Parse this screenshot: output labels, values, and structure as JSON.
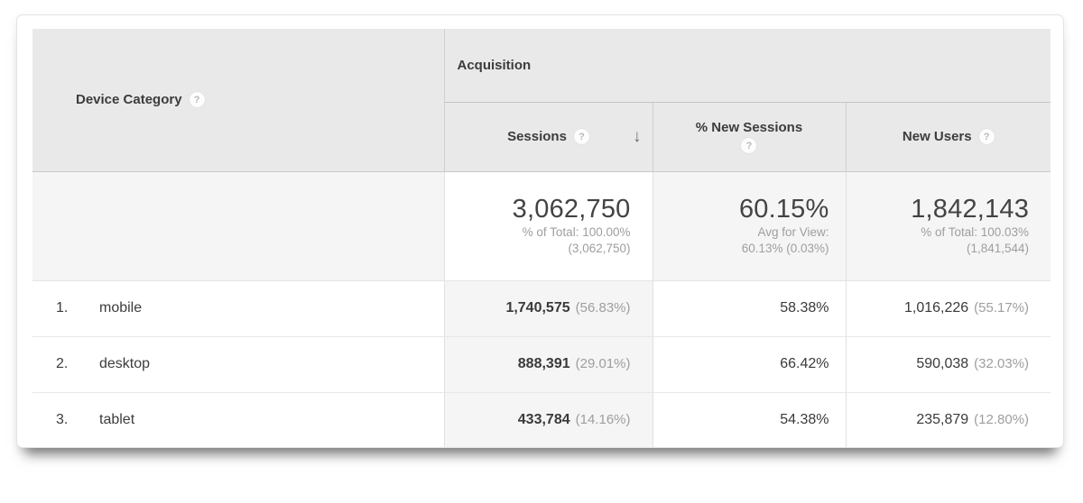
{
  "icons": {
    "help": "?",
    "sort_desc": "↓"
  },
  "colors": {
    "header_bg": "#e9e9e9",
    "summary_bg": "#f5f5f5",
    "sorted_column_bg": "#f5f5f5",
    "muted_text": "#9e9e9e",
    "dark_text": "#3c3c3c"
  },
  "table": {
    "dimension_header": {
      "label": "Device Category"
    },
    "group_header": {
      "label": "Acquisition"
    },
    "columns": {
      "sessions": {
        "label": "Sessions",
        "sorted": "descending"
      },
      "new_sessions": {
        "label": "% New Sessions"
      },
      "new_users": {
        "label": "New Users"
      }
    },
    "summary": {
      "sessions": {
        "value": "3,062,750",
        "line1": "% of Total: 100.00%",
        "line2": "(3,062,750)"
      },
      "new_sessions": {
        "value": "60.15%",
        "line1": "Avg for View:",
        "line2": "60.13% (0.03%)"
      },
      "new_users": {
        "value": "1,842,143",
        "line1": "% of Total: 100.03%",
        "line2": "(1,841,544)"
      }
    },
    "rows": [
      {
        "index": "1.",
        "label": "mobile",
        "sessions": "1,740,575",
        "sessions_pct": "(56.83%)",
        "new_sessions": "58.38%",
        "new_users": "1,016,226",
        "new_users_pct": "(55.17%)"
      },
      {
        "index": "2.",
        "label": "desktop",
        "sessions": "888,391",
        "sessions_pct": "(29.01%)",
        "new_sessions": "66.42%",
        "new_users": "590,038",
        "new_users_pct": "(32.03%)"
      },
      {
        "index": "3.",
        "label": "tablet",
        "sessions": "433,784",
        "sessions_pct": "(14.16%)",
        "new_sessions": "54.38%",
        "new_users": "235,879",
        "new_users_pct": "(12.80%)"
      }
    ]
  }
}
